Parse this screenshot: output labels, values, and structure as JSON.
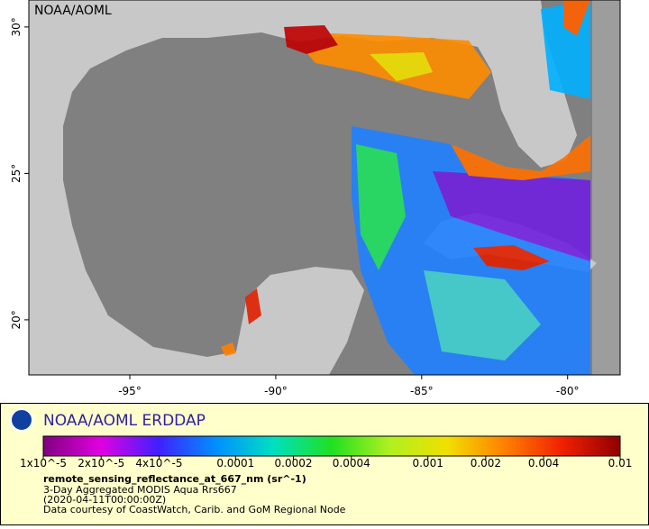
{
  "map": {
    "credit": "NOAA/AOML",
    "xlim": [
      -98.46,
      -78.2
    ],
    "ylim": [
      18.12,
      30.92
    ],
    "xticks": [
      {
        "value": -95,
        "label": "-95°"
      },
      {
        "value": -90,
        "label": "-90°"
      },
      {
        "value": -85,
        "label": "-85°"
      },
      {
        "value": -80,
        "label": "-80°"
      }
    ],
    "yticks": [
      {
        "value": 20,
        "label": "20°"
      },
      {
        "value": 25,
        "label": "25°"
      },
      {
        "value": 30,
        "label": "30°"
      }
    ]
  },
  "legend": {
    "title": "NOAA/AOML ERDDAP",
    "variable": "remote_sensing_reflectance_at_667_nm (sr^-1)",
    "lines": [
      "3-Day Aggregated MODIS Aqua Rrs667",
      "(2020-04-11T00:00:00Z)",
      "Data courtesy of CoastWatch, Carib. and GoM Regional Node"
    ]
  },
  "colorbar": {
    "type": "colorbar",
    "log_scale": true,
    "lim": [
      1e-05,
      0.01
    ],
    "ticks": [
      {
        "value": 1e-05,
        "label": "1x10^-5"
      },
      {
        "value": 2e-05,
        "label": "2x10^-5"
      },
      {
        "value": 4e-05,
        "label": "4x10^-5"
      },
      0.0001,
      0.0002,
      0.0004,
      0.001,
      0.002,
      0.004,
      0.01
    ],
    "colors": [
      "#800080",
      "#e000e0",
      "#4020ff",
      "#0090ff",
      "#00e0c0",
      "#20e020",
      "#b0f020",
      "#f0e000",
      "#ff8000",
      "#f02000",
      "#900000"
    ]
  }
}
